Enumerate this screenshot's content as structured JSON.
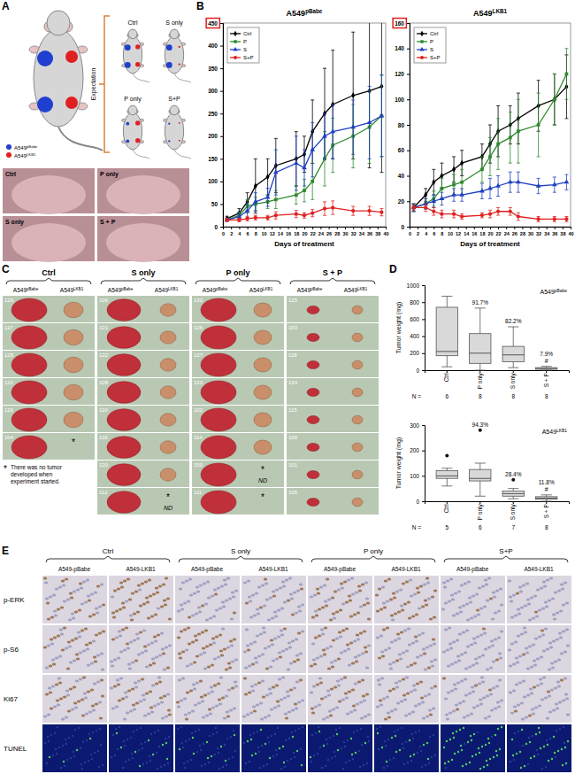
{
  "figure": {
    "panel_labels": [
      "A",
      "B",
      "C",
      "D",
      "E"
    ],
    "A": {
      "expectation": "Expectation",
      "groups": [
        "Ctrl",
        "S only",
        "P only",
        "S+P"
      ],
      "legend": [
        {
          "text": "A549",
          "sup": "pBabe",
          "color": "#1f3fd0"
        },
        {
          "text": "A549",
          "sup": "LKB1",
          "color": "#e02020"
        }
      ],
      "photos": [
        "Ctrl",
        "P only",
        "S only",
        "S + P"
      ]
    },
    "C": {
      "lines": [
        {
          "text": "A549",
          "sup": "pBabe"
        },
        {
          "text": "A549",
          "sup": "LKB1"
        }
      ],
      "groups": [
        {
          "name": "Ctrl",
          "rows": [
            {
              "id": 129
            },
            {
              "id": 117
            },
            {
              "id": 128
            },
            {
              "id": 113
            },
            {
              "id": 119
            },
            {
              "id": 104,
              "star": "*"
            }
          ]
        },
        {
          "name": "S only",
          "rows": [
            {
              "id": 106
            },
            {
              "id": 121
            },
            {
              "id": 122
            },
            {
              "id": 108
            },
            {
              "id": 110
            },
            {
              "id": 116
            },
            {
              "id": 120
            },
            {
              "id": 112,
              "star": "*",
              "note": "ND"
            }
          ]
        },
        {
          "name": "P only",
          "rows": [
            {
              "id": 130
            },
            {
              "id": 126
            },
            {
              "id": 127
            },
            {
              "id": 123
            },
            {
              "id": 102
            },
            {
              "id": 114
            },
            {
              "id": 150,
              "star": "*",
              "note": "ND"
            },
            {
              "id": 111,
              "star": "*"
            }
          ]
        },
        {
          "name": "S + P",
          "rows": [
            {
              "id": 125
            },
            {
              "id": 103
            },
            {
              "id": 118
            },
            {
              "id": 124
            },
            {
              "id": 115
            },
            {
              "id": 109
            },
            {
              "id": 101
            },
            {
              "id": 105
            }
          ]
        }
      ],
      "footnote_symbol": "*",
      "footnote": "There was no tumor developed when experiment started."
    },
    "E": {
      "groups": [
        "Ctrl",
        "S only",
        "P only",
        "S+P"
      ],
      "lines": [
        "A549-pBabe",
        "A549-LKB1"
      ],
      "rows": [
        "p-ERK",
        "p-S6",
        "Ki67",
        "TUNEL"
      ]
    }
  },
  "chart_data": [
    {
      "type": "line",
      "title": {
        "text": "A549",
        "sup": "pBabe"
      },
      "x_label": "Days of treatment",
      "x": [
        1,
        4,
        6,
        8,
        11,
        13,
        18,
        20,
        22,
        25,
        27,
        32,
        36,
        39
      ],
      "xlim": [
        0,
        40
      ],
      "xticks": [
        0,
        2,
        4,
        6,
        8,
        10,
        12,
        14,
        16,
        18,
        20,
        22,
        24,
        26,
        28,
        30,
        32,
        34,
        36,
        38,
        40
      ],
      "ylim": [
        0,
        450
      ],
      "yticks": [
        0,
        50,
        100,
        150,
        200,
        250,
        300,
        350,
        400,
        450
      ],
      "legend": "upper-left",
      "series": [
        {
          "name": "Ctrl",
          "color": "#000000",
          "marker": "diamond",
          "values": [
            18,
            30,
            55,
            90,
            110,
            135,
            150,
            160,
            210,
            250,
            270,
            290,
            300,
            310
          ],
          "errors": [
            5,
            10,
            20,
            60,
            40,
            60,
            60,
            40,
            70,
            100,
            120,
            140,
            170,
            190
          ]
        },
        {
          "name": "P",
          "color": "#2e8b2e",
          "marker": "square",
          "values": [
            15,
            25,
            45,
            50,
            55,
            60,
            70,
            80,
            100,
            150,
            180,
            200,
            220,
            245
          ],
          "errors": [
            3,
            8,
            15,
            15,
            15,
            20,
            20,
            25,
            40,
            60,
            60,
            70,
            80,
            90
          ]
        },
        {
          "name": "S",
          "color": "#2040c0",
          "marker": "triangle",
          "values": [
            15,
            22,
            35,
            55,
            65,
            120,
            140,
            130,
            170,
            200,
            210,
            220,
            230,
            245
          ],
          "errors": [
            3,
            8,
            15,
            20,
            20,
            50,
            60,
            40,
            60,
            50,
            60,
            60,
            80,
            90
          ]
        },
        {
          "name": "S+P",
          "color": "#e02020",
          "marker": "circle",
          "values": [
            15,
            15,
            18,
            20,
            20,
            25,
            28,
            25,
            30,
            40,
            42,
            35,
            35,
            32
          ],
          "errors": [
            3,
            4,
            5,
            5,
            5,
            8,
            8,
            6,
            8,
            15,
            15,
            10,
            10,
            8
          ]
        }
      ]
    },
    {
      "type": "line",
      "title": {
        "text": "A549",
        "sup": "LKB1"
      },
      "x_label": "Days of treatment",
      "x": [
        1,
        4,
        6,
        8,
        11,
        13,
        18,
        20,
        22,
        25,
        27,
        32,
        36,
        39
      ],
      "xlim": [
        0,
        40
      ],
      "xticks": [
        0,
        2,
        4,
        6,
        8,
        10,
        12,
        14,
        16,
        18,
        20,
        22,
        24,
        26,
        28,
        30,
        32,
        34,
        36,
        38,
        40
      ],
      "ylim": [
        0,
        160
      ],
      "yticks": [
        0,
        20,
        40,
        60,
        80,
        100,
        120,
        140,
        160
      ],
      "legend": "upper-left",
      "series": [
        {
          "name": "Ctrl",
          "color": "#000000",
          "marker": "diamond",
          "values": [
            15,
            25,
            35,
            40,
            45,
            50,
            55,
            65,
            75,
            80,
            85,
            95,
            100,
            110
          ],
          "errors": [
            3,
            5,
            10,
            10,
            10,
            10,
            10,
            15,
            20,
            15,
            20,
            20,
            20,
            25
          ]
        },
        {
          "name": "P",
          "color": "#2e8b2e",
          "marker": "square",
          "values": [
            15,
            18,
            22,
            30,
            33,
            35,
            45,
            55,
            65,
            70,
            75,
            80,
            100,
            120
          ],
          "errors": [
            3,
            4,
            6,
            8,
            8,
            10,
            10,
            15,
            20,
            20,
            25,
            25,
            20,
            20
          ]
        },
        {
          "name": "S",
          "color": "#2040c0",
          "marker": "triangle",
          "values": [
            15,
            18,
            20,
            22,
            25,
            25,
            28,
            30,
            32,
            35,
            35,
            32,
            33,
            35
          ],
          "errors": [
            3,
            4,
            5,
            5,
            5,
            5,
            6,
            8,
            8,
            8,
            8,
            6,
            6,
            6
          ]
        },
        {
          "name": "S+P",
          "color": "#e02020",
          "marker": "circle",
          "values": [
            15,
            15,
            12,
            10,
            10,
            8,
            9,
            10,
            12,
            12,
            8,
            6,
            6,
            6
          ],
          "errors": [
            2,
            3,
            3,
            3,
            3,
            2,
            2,
            3,
            3,
            3,
            3,
            2,
            2,
            2
          ]
        }
      ]
    },
    {
      "type": "box",
      "title": {
        "text": "A549",
        "sup": "pBabe"
      },
      "y_label": "Tumor weight (mg)",
      "categories": [
        "Ctrl",
        "P only",
        "S only",
        "S + P"
      ],
      "n_label": "N =",
      "n": [
        6,
        8,
        8,
        8
      ],
      "ylim": [
        0,
        1000
      ],
      "yticks": [
        0,
        200,
        400,
        600,
        800,
        1000
      ],
      "color": "#d9d9d9",
      "boxes": [
        {
          "min": 40,
          "q1": 170,
          "median": 220,
          "q3": 740,
          "max": 870,
          "outliers": []
        },
        {
          "min": 0,
          "q1": 80,
          "median": 200,
          "q3": 430,
          "max": 730,
          "outliers": []
        },
        {
          "min": 30,
          "q1": 100,
          "median": 180,
          "q3": 280,
          "max": 510,
          "outliers": []
        },
        {
          "min": 0,
          "q1": 10,
          "median": 20,
          "q3": 30,
          "max": 45,
          "outliers": []
        }
      ],
      "annotations": [
        null,
        {
          "value": 91.7,
          "label": "91.7%"
        },
        {
          "value": 82.2,
          "label": "82.2%"
        },
        {
          "value": 7.9,
          "label": "7.9%"
        }
      ],
      "significance": [
        null,
        null,
        null,
        "#"
      ]
    },
    {
      "type": "box",
      "title": {
        "text": "A549",
        "sup": "LKB1"
      },
      "y_label": "Tumor weight (mg)",
      "categories": [
        "Ctrl",
        "P only",
        "S only",
        "S + P"
      ],
      "n_label": "N =",
      "n": [
        5,
        6,
        7,
        8
      ],
      "ylim": [
        0,
        300
      ],
      "yticks": [
        0,
        100,
        200,
        300
      ],
      "color": "#d9d9d9",
      "boxes": [
        {
          "min": 60,
          "q1": 90,
          "median": 100,
          "q3": 120,
          "max": 130,
          "outliers": [
            180
          ]
        },
        {
          "min": 20,
          "q1": 80,
          "median": 90,
          "q3": 125,
          "max": 150,
          "outliers": [
            280
          ]
        },
        {
          "min": 10,
          "q1": 20,
          "median": 30,
          "q3": 40,
          "max": 50,
          "outliers": [
            85
          ]
        },
        {
          "min": 0,
          "q1": 8,
          "median": 12,
          "q3": 18,
          "max": 25,
          "outliers": []
        }
      ],
      "annotations": [
        null,
        {
          "value": 94.3,
          "label": "94.3%"
        },
        {
          "value": 28.4,
          "label": "28.4%"
        },
        {
          "value": 11.8,
          "label": "11.8%"
        }
      ],
      "significance": [
        null,
        null,
        null,
        "#"
      ]
    }
  ]
}
